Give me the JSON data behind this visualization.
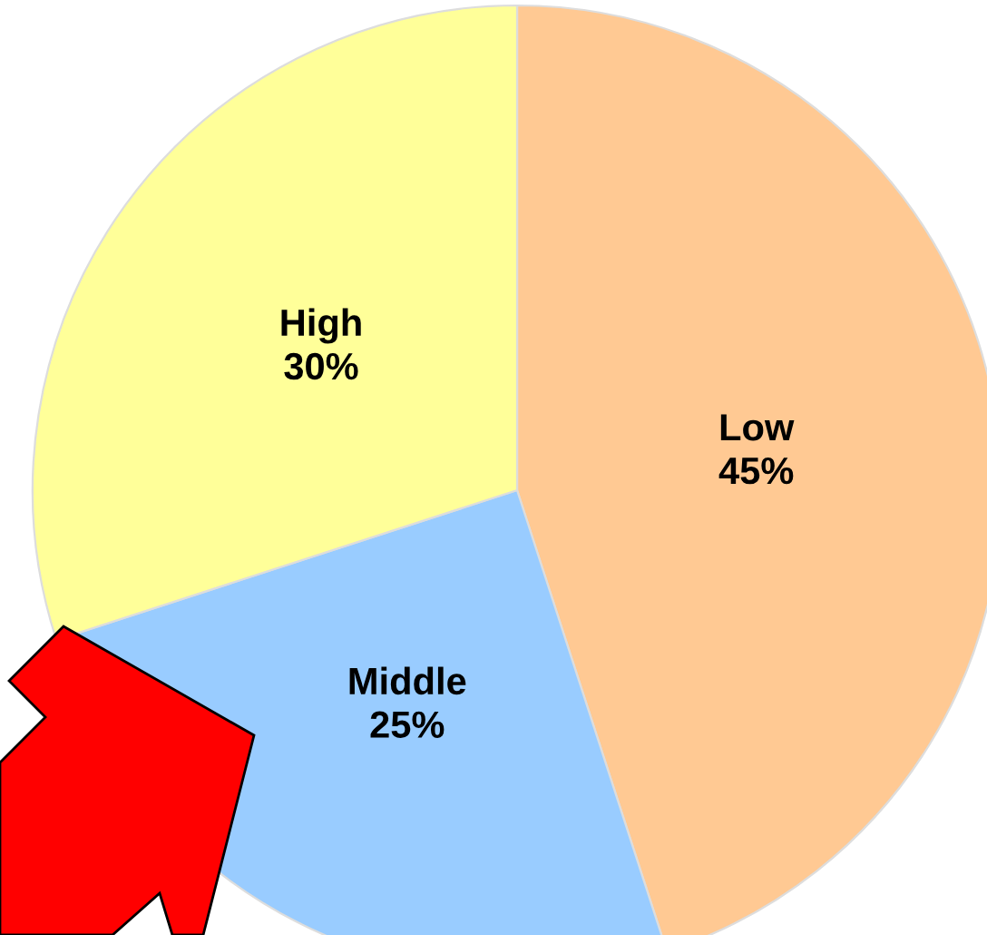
{
  "chart_data": {
    "type": "pie",
    "categories": [
      "Low",
      "Middle",
      "High"
    ],
    "values": [
      45,
      25,
      30
    ],
    "value_labels": [
      "45%",
      "25%",
      "30%"
    ],
    "colors": [
      "#ffc993",
      "#99ccff",
      "#ffff99"
    ]
  }
}
